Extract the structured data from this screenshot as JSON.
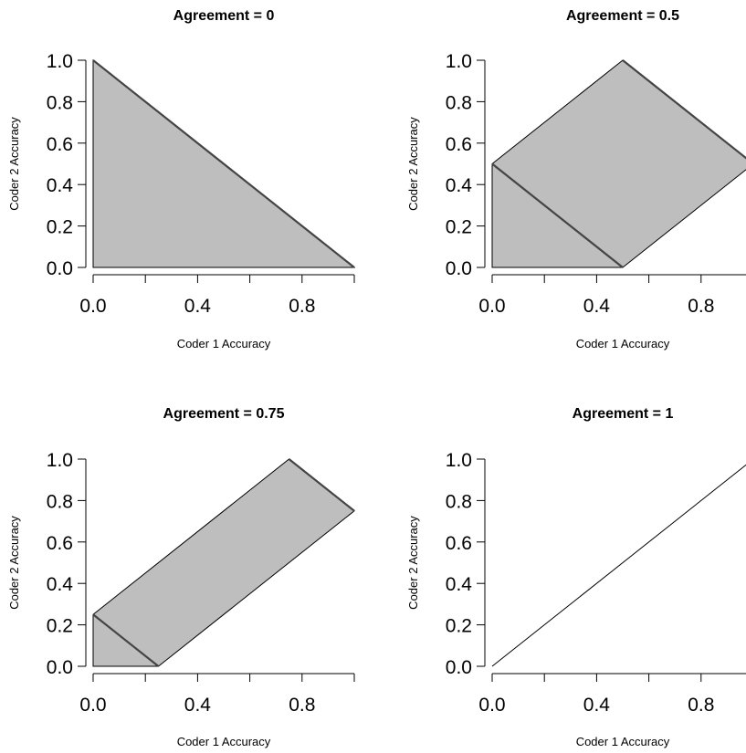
{
  "chart_data": [
    {
      "type": "area",
      "title": "Agreement = 0",
      "xlabel": "Coder 1 Accuracy",
      "ylabel": "Coder 2 Accuracy",
      "xlim": [
        0,
        1
      ],
      "ylim": [
        0,
        1
      ],
      "x_ticks": [
        0,
        0.2,
        0.4,
        0.6,
        0.8,
        1.0
      ],
      "x_tick_labels": [
        "0.0",
        "",
        "0.4",
        "",
        "0.8",
        ""
      ],
      "y_ticks": [
        0,
        0.2,
        0.4,
        0.6,
        0.8,
        1.0
      ],
      "y_tick_labels": [
        "0.0",
        "0.2",
        "0.4",
        "0.6",
        "0.8",
        "1.0"
      ],
      "region": [
        [
          0,
          0
        ],
        [
          0,
          1
        ],
        [
          1,
          0
        ]
      ],
      "lines": [
        {
          "points": [
            [
              0,
              1
            ],
            [
              1,
              0
            ]
          ],
          "style": "dark"
        }
      ]
    },
    {
      "type": "area",
      "title": "Agreement = 0.5",
      "xlabel": "Coder 1 Accuracy",
      "ylabel": "Coder 2 Accuracy",
      "xlim": [
        0,
        1
      ],
      "ylim": [
        0,
        1
      ],
      "x_ticks": [
        0,
        0.2,
        0.4,
        0.6,
        0.8,
        1.0
      ],
      "x_tick_labels": [
        "0.0",
        "",
        "0.4",
        "",
        "0.8",
        ""
      ],
      "y_ticks": [
        0,
        0.2,
        0.4,
        0.6,
        0.8,
        1.0
      ],
      "y_tick_labels": [
        "0.0",
        "0.2",
        "0.4",
        "0.6",
        "0.8",
        "1.0"
      ],
      "region": [
        [
          0,
          0
        ],
        [
          0,
          0.5
        ],
        [
          0.5,
          1
        ],
        [
          1,
          0.5
        ],
        [
          0.5,
          0
        ]
      ],
      "lines": [
        {
          "points": [
            [
              0,
              0.5
            ],
            [
              0.5,
              0
            ]
          ],
          "style": "dark"
        },
        {
          "points": [
            [
              0.5,
              1
            ],
            [
              1,
              0.5
            ]
          ],
          "style": "dark"
        }
      ]
    },
    {
      "type": "area",
      "title": "Agreement = 0.75",
      "xlabel": "Coder 1 Accuracy",
      "ylabel": "Coder 2 Accuracy",
      "xlim": [
        0,
        1
      ],
      "ylim": [
        0,
        1
      ],
      "x_ticks": [
        0,
        0.2,
        0.4,
        0.6,
        0.8,
        1.0
      ],
      "x_tick_labels": [
        "0.0",
        "",
        "0.4",
        "",
        "0.8",
        ""
      ],
      "y_ticks": [
        0,
        0.2,
        0.4,
        0.6,
        0.8,
        1.0
      ],
      "y_tick_labels": [
        "0.0",
        "0.2",
        "0.4",
        "0.6",
        "0.8",
        "1.0"
      ],
      "region": [
        [
          0,
          0
        ],
        [
          0,
          0.25
        ],
        [
          0.75,
          1
        ],
        [
          1,
          0.75
        ],
        [
          0.25,
          0
        ]
      ],
      "lines": [
        {
          "points": [
            [
              0,
              0.25
            ],
            [
              0.25,
              0
            ]
          ],
          "style": "dark"
        },
        {
          "points": [
            [
              0.75,
              1
            ],
            [
              1,
              0.75
            ]
          ],
          "style": "dark"
        }
      ]
    },
    {
      "type": "line",
      "title": "Agreement = 1",
      "xlabel": "Coder 1 Accuracy",
      "ylabel": "Coder 2 Accuracy",
      "xlim": [
        0,
        1
      ],
      "ylim": [
        0,
        1
      ],
      "x_ticks": [
        0,
        0.2,
        0.4,
        0.6,
        0.8,
        1.0
      ],
      "x_tick_labels": [
        "0.0",
        "",
        "0.4",
        "",
        "0.8",
        ""
      ],
      "y_ticks": [
        0,
        0.2,
        0.4,
        0.6,
        0.8,
        1.0
      ],
      "y_tick_labels": [
        "0.0",
        "0.2",
        "0.4",
        "0.6",
        "0.8",
        "1.0"
      ],
      "region": null,
      "lines": [
        {
          "points": [
            [
              0,
              0
            ],
            [
              1,
              1
            ]
          ],
          "style": "thin"
        }
      ]
    }
  ],
  "colors": {
    "fill": "#bebebe",
    "outline": "#000000",
    "diagonal": "#444444",
    "axis": "#000000"
  }
}
